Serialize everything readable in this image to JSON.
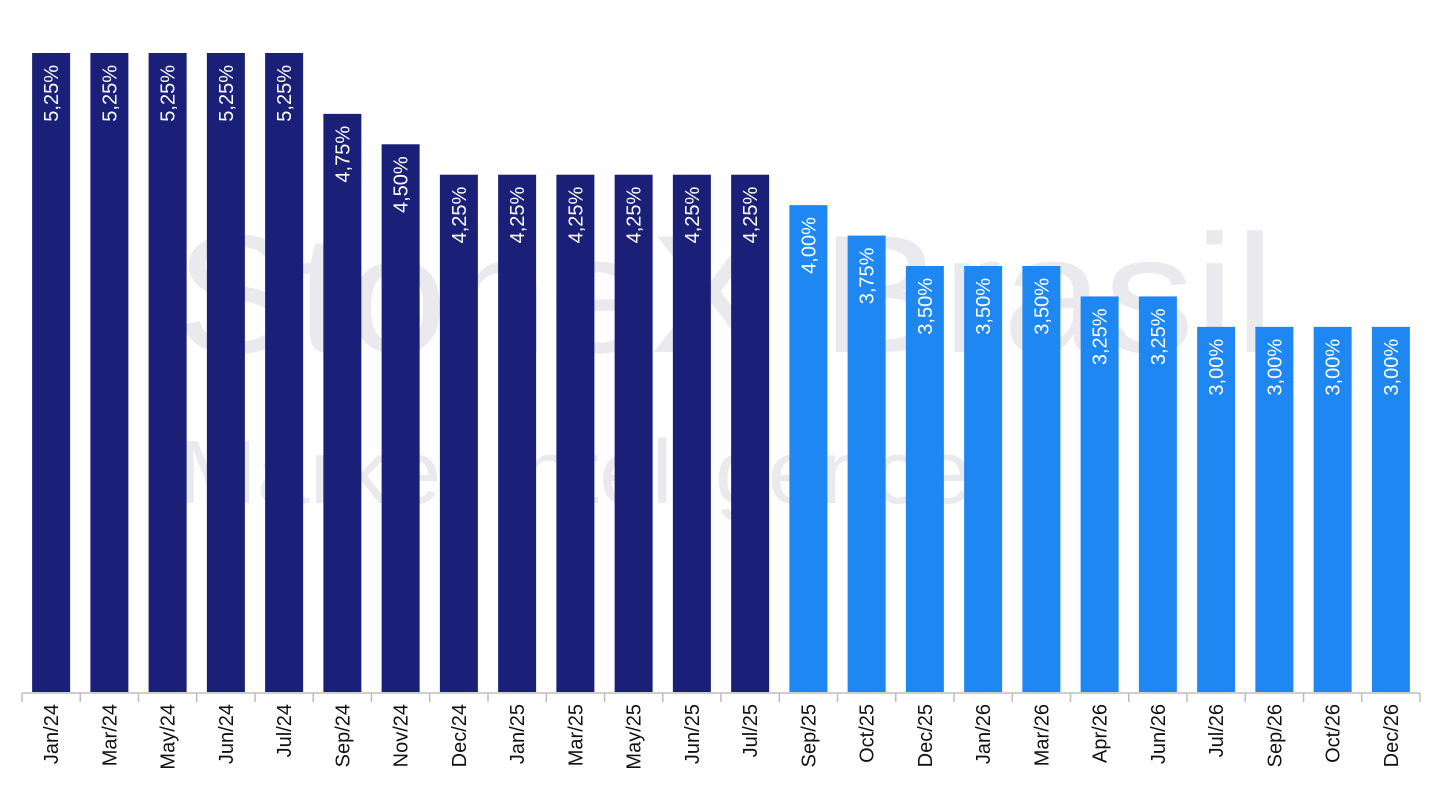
{
  "watermark": {
    "line1": "StoneX Brasil",
    "line2": "Market Intelligence"
  },
  "chart_data": {
    "type": "bar",
    "categories": [
      "Jan/24",
      "Mar/24",
      "May/24",
      "Jun/24",
      "Jul/24",
      "Sep/24",
      "Nov/24",
      "Dec/24",
      "Jan/25",
      "Mar/25",
      "May/25",
      "Jun/25",
      "Jul/25",
      "Sep/25",
      "Oct/25",
      "Dec/25",
      "Jan/26",
      "Mar/26",
      "Apr/26",
      "Jun/26",
      "Jul/26",
      "Sep/26",
      "Oct/26",
      "Dec/26"
    ],
    "values": [
      5.25,
      5.25,
      5.25,
      5.25,
      5.25,
      4.75,
      4.5,
      4.25,
      4.25,
      4.25,
      4.25,
      4.25,
      4.25,
      4.0,
      3.75,
      3.5,
      3.5,
      3.5,
      3.25,
      3.25,
      3.0,
      3.0,
      3.0,
      3.0
    ],
    "labels": [
      "5,25%",
      "5,25%",
      "5,25%",
      "5,25%",
      "5,25%",
      "4,75%",
      "4,50%",
      "4,25%",
      "4,25%",
      "4,25%",
      "4,25%",
      "4,25%",
      "4,25%",
      "4,00%",
      "3,75%",
      "3,50%",
      "3,50%",
      "3,50%",
      "3,25%",
      "3,25%",
      "3,00%",
      "3,00%",
      "3,00%",
      "3,00%"
    ],
    "colors": [
      "#1a2078",
      "#1a2078",
      "#1a2078",
      "#1a2078",
      "#1a2078",
      "#1a2078",
      "#1a2078",
      "#1a2078",
      "#1a2078",
      "#1a2078",
      "#1a2078",
      "#1a2078",
      "#1a2078",
      "#1f87f2",
      "#1f87f2",
      "#1f87f2",
      "#1f87f2",
      "#1f87f2",
      "#1f87f2",
      "#1f87f2",
      "#1f87f2",
      "#1f87f2",
      "#1f87f2",
      "#1f87f2"
    ],
    "ylim": [
      0,
      5.25
    ],
    "title": "",
    "xlabel": "",
    "ylabel": "",
    "grid": false,
    "legend": false
  }
}
